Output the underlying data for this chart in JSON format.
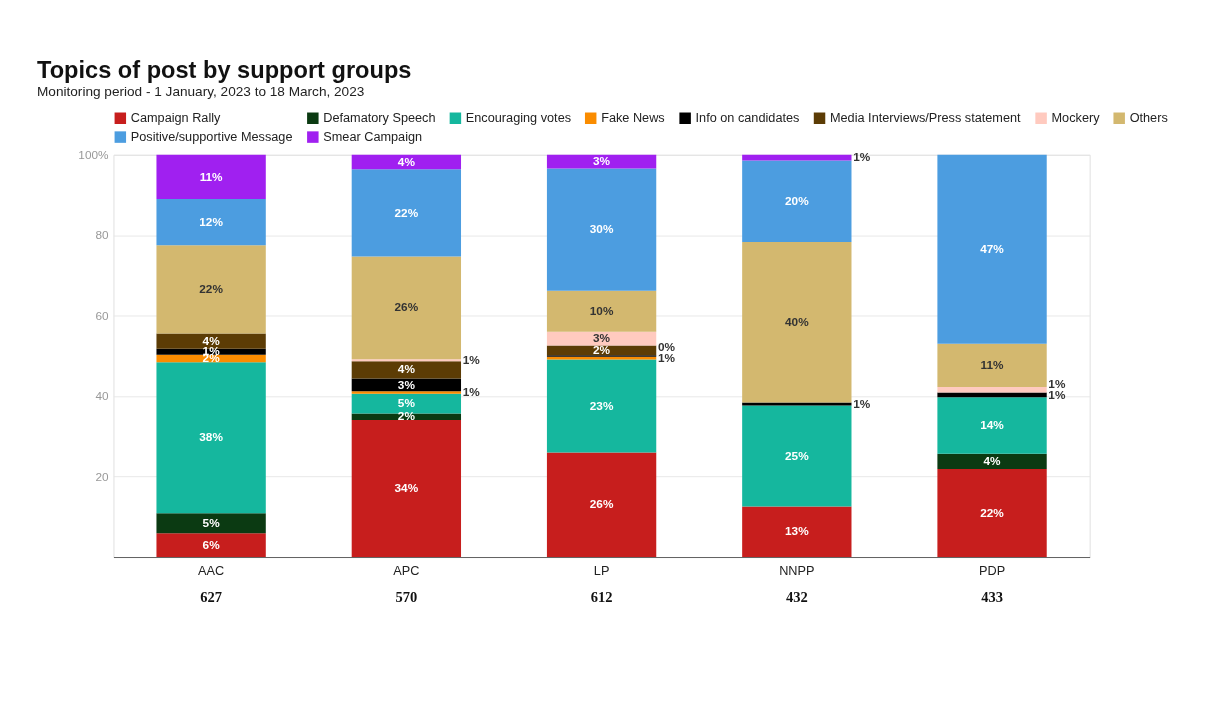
{
  "chart_data": {
    "type": "bar",
    "stacked": true,
    "title": "Topics of post by support groups",
    "subtitle": "Monitoring period - 1 January, 2023 to 18 March, 2023",
    "categories": [
      "AAC",
      "APC",
      "LP",
      "NNPP",
      "PDP"
    ],
    "series": [
      {
        "name": "Campaign Rally",
        "color": "#c71e1d",
        "values": [
          5.9,
          34.1,
          26.0,
          12.6,
          21.9
        ],
        "value_labels": [
          "6%",
          "34%",
          "26%",
          "13%",
          "22%"
        ]
      },
      {
        "name": "Defamatory Speech",
        "color": "#0b3a12",
        "values": [
          5.0,
          1.6,
          0,
          0,
          3.8
        ],
        "value_labels": [
          "5%",
          "2%",
          null,
          null,
          "4%"
        ]
      },
      {
        "name": "Encouraging votes",
        "color": "#15b79e",
        "values": [
          37.5,
          4.9,
          23.1,
          25.1,
          14.0
        ],
        "value_labels": [
          "38%",
          "5%",
          "23%",
          "25%",
          "14%"
        ]
      },
      {
        "name": "Fake News",
        "color": "#fa8c00",
        "values": [
          1.9,
          0.6,
          0.7,
          0,
          0
        ],
        "value_labels": [
          "2%",
          "1%",
          "1%",
          null,
          null
        ]
      },
      {
        "name": "Info on candidates",
        "color": "#000000",
        "values": [
          1.5,
          3.2,
          0.4,
          0.7,
          1.2
        ],
        "value_labels": [
          "1%",
          "3%",
          "0%",
          "1%",
          "1%"
        ]
      },
      {
        "name": "Media Interviews/Press statement",
        "color": "#5c3c05",
        "values": [
          3.8,
          4.3,
          2.4,
          0,
          0
        ],
        "value_labels": [
          "4%",
          "4%",
          "2%",
          null,
          null
        ]
      },
      {
        "name": "Mockery",
        "color": "#ffcabf",
        "values": [
          0,
          0.5,
          3.4,
          0,
          1.4
        ],
        "value_labels": [
          null,
          "1%",
          "3%",
          null,
          "1%"
        ]
      },
      {
        "name": "Others",
        "color": "#d3b86f",
        "values": [
          21.9,
          25.5,
          10.2,
          39.9,
          10.7
        ],
        "value_labels": [
          "22%",
          "26%",
          "10%",
          "40%",
          "11%"
        ]
      },
      {
        "name": "Positive/supportive Message",
        "color": "#4c9de0",
        "values": [
          11.5,
          21.7,
          30.4,
          20.3,
          47.0
        ],
        "value_labels": [
          "12%",
          "22%",
          "30%",
          "20%",
          "47%"
        ]
      },
      {
        "name": "Smear Campaign",
        "color": "#a020f0",
        "values": [
          11.0,
          3.6,
          3.4,
          1.4,
          0
        ],
        "value_labels": [
          "11%",
          "4%",
          "3%",
          "1%",
          null
        ]
      }
    ],
    "ylim": [
      0,
      100
    ],
    "yticks": [
      20,
      40,
      60,
      80,
      {
        "value": 100,
        "label": "100%"
      }
    ],
    "grid": "y",
    "legend": "top",
    "annotations": [
      "627",
      "570",
      "612",
      "432",
      "433"
    ]
  }
}
